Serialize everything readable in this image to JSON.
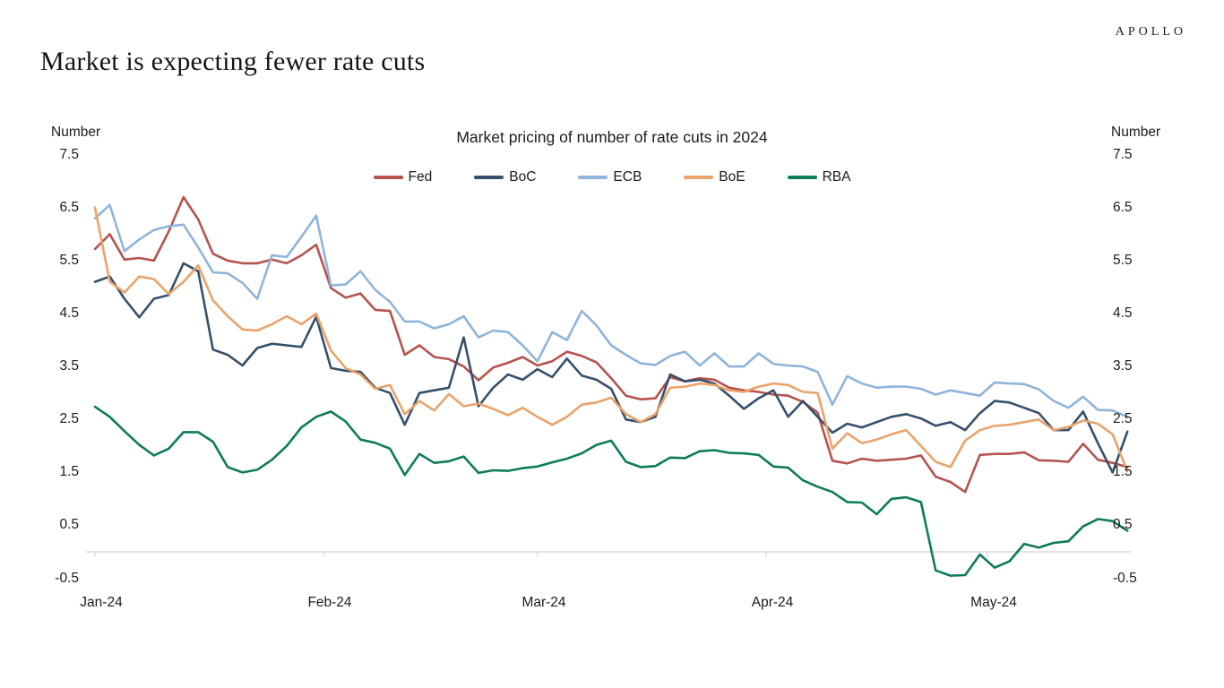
{
  "brand": "APOLLO",
  "title": "Market is expecting fewer rate cuts",
  "chart_data": {
    "type": "line",
    "title": "Market pricing of number of rate cuts in 2024",
    "ylabel_left": "Number",
    "ylabel_right": "Number",
    "ylim": [
      -0.5,
      7.5
    ],
    "y_tick_step": 1.0,
    "y_ticks": [
      "7.5",
      "6.5",
      "5.5",
      "4.5",
      "3.5",
      "2.5",
      "1.5",
      "0.5",
      "-0.5"
    ],
    "x_ticks": [
      {
        "label": "Jan-24",
        "day": 0
      },
      {
        "label": "Feb-24",
        "day": 31
      },
      {
        "label": "Mar-24",
        "day": 60
      },
      {
        "label": "Apr-24",
        "day": 91
      },
      {
        "label": "May-24",
        "day": 121
      }
    ],
    "x_unit": "days since 1 Jan 2024; one sample every 2 days (Jan-24 through ~21 May-24)",
    "day_step": 2,
    "grid": "zero-axis-line-only",
    "axis_color": "#D9D9D9",
    "legend_position": "top-center",
    "series": [
      {
        "name": "Fed",
        "color": "#B5534F",
        "values": [
          5.72,
          6.0,
          5.52,
          5.55,
          5.5,
          6.05,
          6.7,
          6.28,
          5.63,
          5.5,
          5.45,
          5.45,
          5.52,
          5.45,
          5.6,
          5.8,
          4.98,
          4.8,
          4.88,
          4.57,
          4.55,
          3.72,
          3.9,
          3.68,
          3.64,
          3.5,
          3.24,
          3.48,
          3.57,
          3.68,
          3.52,
          3.6,
          3.78,
          3.7,
          3.58,
          3.28,
          2.95,
          2.88,
          2.9,
          3.3,
          3.22,
          3.28,
          3.25,
          3.1,
          3.05,
          3.02,
          2.97,
          2.95,
          2.83,
          2.63,
          1.72,
          1.67,
          1.76,
          1.72,
          1.74,
          1.76,
          1.82,
          1.42,
          1.32,
          1.13,
          1.83,
          1.85,
          1.85,
          1.88,
          1.73,
          1.72,
          1.7,
          2.04,
          1.74,
          1.68,
          1.6
        ]
      },
      {
        "name": "BoC",
        "color": "#36506A",
        "values": [
          5.1,
          5.2,
          4.78,
          4.43,
          4.78,
          4.85,
          5.45,
          5.3,
          3.82,
          3.72,
          3.52,
          3.85,
          3.93,
          3.9,
          3.87,
          4.44,
          3.47,
          3.42,
          3.4,
          3.1,
          3.0,
          2.4,
          3.0,
          3.05,
          3.1,
          4.05,
          2.75,
          3.1,
          3.35,
          3.25,
          3.45,
          3.3,
          3.65,
          3.33,
          3.25,
          3.08,
          2.5,
          2.45,
          2.55,
          3.35,
          3.22,
          3.25,
          3.18,
          2.95,
          2.7,
          2.9,
          3.05,
          2.55,
          2.85,
          2.55,
          2.25,
          2.42,
          2.35,
          2.45,
          2.55,
          2.6,
          2.52,
          2.38,
          2.45,
          2.3,
          2.62,
          2.85,
          2.82,
          2.72,
          2.62,
          2.3,
          2.3,
          2.65,
          2.05,
          1.5,
          2.27
        ]
      },
      {
        "name": "ECB",
        "color": "#8FB4DC",
        "values": [
          6.3,
          6.55,
          5.68,
          5.9,
          6.08,
          6.15,
          6.18,
          5.75,
          5.28,
          5.26,
          5.08,
          4.78,
          5.6,
          5.57,
          5.95,
          6.35,
          5.03,
          5.05,
          5.3,
          4.95,
          4.72,
          4.35,
          4.35,
          4.22,
          4.3,
          4.45,
          4.05,
          4.18,
          4.15,
          3.9,
          3.6,
          4.15,
          4.0,
          4.55,
          4.28,
          3.9,
          3.72,
          3.56,
          3.53,
          3.7,
          3.78,
          3.52,
          3.75,
          3.5,
          3.5,
          3.75,
          3.55,
          3.52,
          3.5,
          3.4,
          2.78,
          3.32,
          3.18,
          3.1,
          3.12,
          3.12,
          3.08,
          2.97,
          3.05,
          3.0,
          2.95,
          3.2,
          3.18,
          3.17,
          3.07,
          2.85,
          2.72,
          2.93,
          2.68,
          2.67,
          2.55
        ]
      },
      {
        "name": "BoE",
        "color": "#EAA36A",
        "values": [
          6.5,
          5.1,
          4.9,
          5.2,
          5.15,
          4.87,
          5.1,
          5.41,
          4.75,
          4.45,
          4.2,
          4.18,
          4.3,
          4.45,
          4.3,
          4.5,
          3.8,
          3.47,
          3.35,
          3.08,
          3.15,
          2.6,
          2.85,
          2.67,
          2.98,
          2.75,
          2.8,
          2.7,
          2.58,
          2.72,
          2.55,
          2.4,
          2.55,
          2.78,
          2.82,
          2.91,
          2.6,
          2.45,
          2.6,
          3.1,
          3.12,
          3.18,
          3.15,
          3.05,
          3.02,
          3.12,
          3.18,
          3.15,
          3.02,
          3.0,
          1.95,
          2.24,
          2.05,
          2.12,
          2.22,
          2.3,
          2.0,
          1.7,
          1.6,
          2.1,
          2.3,
          2.38,
          2.4,
          2.45,
          2.5,
          2.3,
          2.36,
          2.48,
          2.42,
          2.22,
          1.52
        ]
      },
      {
        "name": "RBA",
        "color": "#0E7B59",
        "values": [
          2.74,
          2.55,
          2.28,
          2.02,
          1.82,
          1.95,
          2.26,
          2.26,
          2.08,
          1.6,
          1.5,
          1.55,
          1.74,
          2.0,
          2.35,
          2.55,
          2.65,
          2.46,
          2.12,
          2.06,
          1.95,
          1.45,
          1.85,
          1.68,
          1.71,
          1.8,
          1.49,
          1.54,
          1.53,
          1.58,
          1.61,
          1.69,
          1.76,
          1.86,
          2.02,
          2.1,
          1.7,
          1.6,
          1.62,
          1.78,
          1.77,
          1.9,
          1.92,
          1.87,
          1.86,
          1.83,
          1.61,
          1.59,
          1.35,
          1.23,
          1.13,
          0.94,
          0.93,
          0.71,
          1.0,
          1.03,
          0.94,
          -0.35,
          -0.45,
          -0.44,
          -0.05,
          -0.3,
          -0.18,
          0.15,
          0.08,
          0.17,
          0.2,
          0.48,
          0.62,
          0.58,
          0.4
        ]
      }
    ]
  }
}
